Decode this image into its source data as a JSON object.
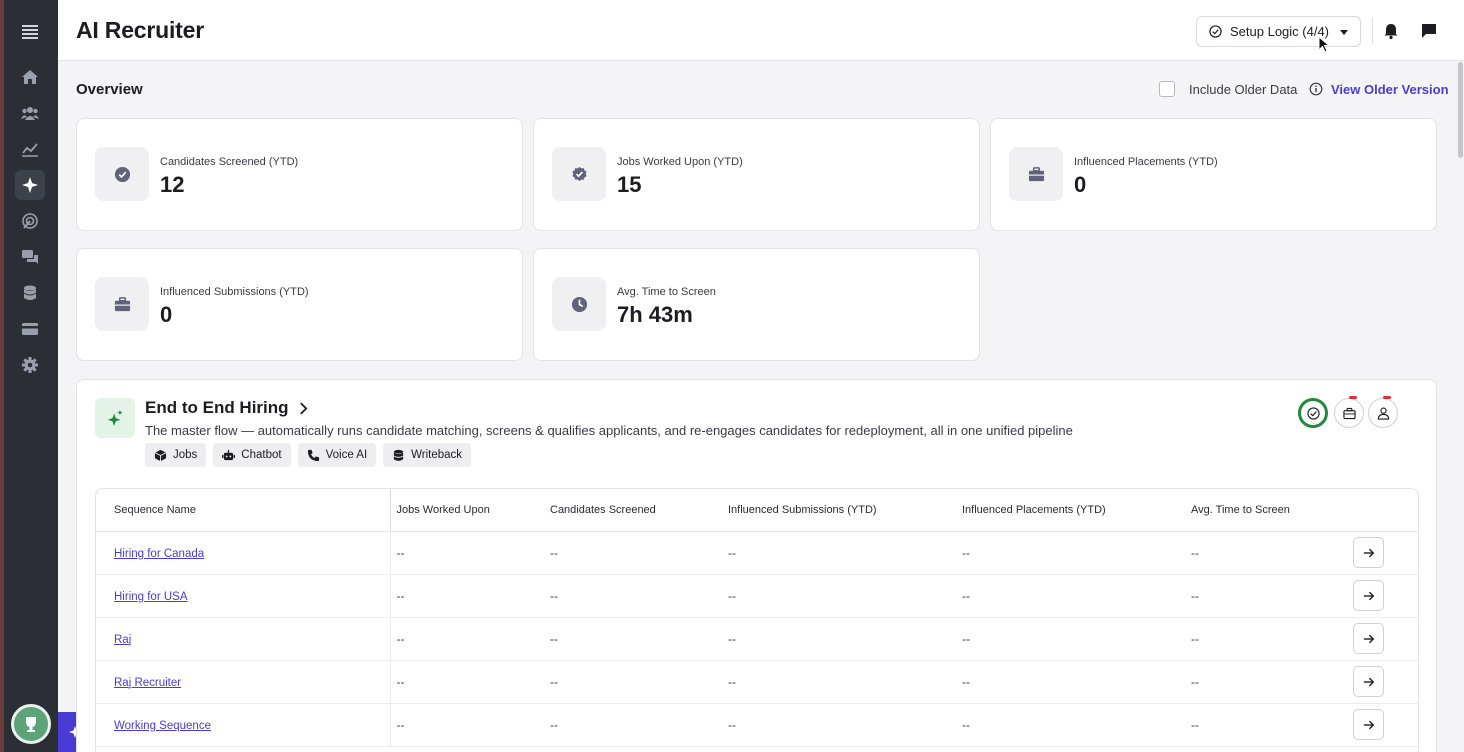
{
  "header": {
    "app_title": "AI Recruiter",
    "setup_label": "Setup Logic (4/4)"
  },
  "sidebar": {
    "items": [
      "menu-icon",
      "home-icon",
      "people-icon",
      "analytics-icon",
      "ai-sparkle-icon",
      "radar-icon",
      "chat-icon",
      "database-icon",
      "card-icon",
      "gear-icon"
    ],
    "active_item": "ai-sparkle-icon"
  },
  "overview": {
    "title": "Overview",
    "include_older_label": "Include Older Data",
    "include_older_checked": false,
    "view_older_label": "View Older Version"
  },
  "stats": [
    {
      "label": "Candidates Screened (YTD)",
      "value": "12",
      "icon": "check-badge-icon"
    },
    {
      "label": "Jobs Worked Upon (YTD)",
      "value": "15",
      "icon": "check-badge-icon"
    },
    {
      "label": "Influenced Placements (YTD)",
      "value": "0",
      "icon": "briefcase-icon"
    },
    {
      "label": "Influenced Submissions (YTD)",
      "value": "0",
      "icon": "briefcase-icon"
    },
    {
      "label": "Avg. Time to Screen",
      "value": "7h 43m",
      "icon": "clock-icon"
    }
  ],
  "workflow": {
    "title": "End to End Hiring",
    "description": "The master flow — automatically runs candidate matching, screens & qualifies applicants, and re-engages candidates for redeployment, all in one unified pipeline",
    "tags": [
      {
        "label": "Jobs",
        "icon": "cube-icon"
      },
      {
        "label": "Chatbot",
        "icon": "robot-icon"
      },
      {
        "label": "Voice AI",
        "icon": "phone-icon"
      },
      {
        "label": "Writeback",
        "icon": "database-icon"
      }
    ],
    "table": {
      "columns": [
        "Sequence Name",
        "Jobs Worked Upon",
        "Candidates Screened",
        "Influenced Submissions (YTD)",
        "Influenced Placements (YTD)",
        "Avg. Time to Screen"
      ],
      "rows": [
        {
          "name": "Hiring for Canada",
          "jobs": "--",
          "screened": "--",
          "submissions": "--",
          "placements": "--",
          "avg": "--"
        },
        {
          "name": "Hiring for USA",
          "jobs": "--",
          "screened": "--",
          "submissions": "--",
          "placements": "--",
          "avg": "--"
        },
        {
          "name": "Raj",
          "jobs": "--",
          "screened": "--",
          "submissions": "--",
          "placements": "--",
          "avg": "--"
        },
        {
          "name": "Raj Recruiter",
          "jobs": "--",
          "screened": "--",
          "submissions": "--",
          "placements": "--",
          "avg": "--"
        },
        {
          "name": "Working Sequence",
          "jobs": "--",
          "screened": "--",
          "submissions": "--",
          "placements": "--",
          "avg": "--"
        }
      ]
    }
  },
  "colors": {
    "sidebar_bg": "#2b2e34",
    "accent": "#4b3bd6",
    "success": "#1e8a3c",
    "alert": "#e0313b"
  }
}
